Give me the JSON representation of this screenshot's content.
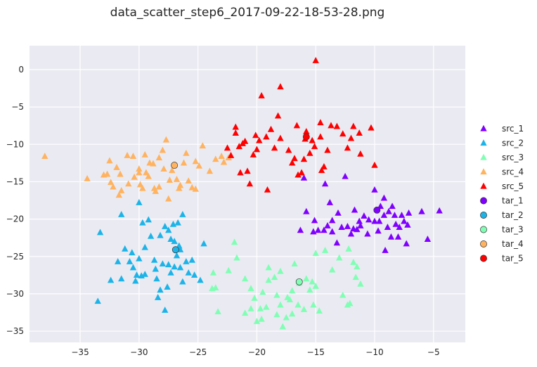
{
  "chart_data": {
    "type": "scatter",
    "title": "data_scatter_step6_2017-09-22-18-53-28.png",
    "xlabel": "",
    "ylabel": "",
    "xlim": [
      -39.3,
      -2.3
    ],
    "ylim": [
      -36.5,
      3.2
    ],
    "xticks": [
      -35,
      -30,
      -25,
      -20,
      -15,
      -10,
      -5
    ],
    "yticks": [
      0,
      -5,
      -10,
      -15,
      -20,
      -25,
      -30,
      -35
    ],
    "grid": true,
    "background": "#eaeaf2",
    "legend_position": "right",
    "series": [
      {
        "name": "src_1",
        "marker": "triangle",
        "color": "#8000ff",
        "points": [
          [
            -16,
            -14.5
          ],
          [
            -14.2,
            -15.3
          ],
          [
            -12.5,
            -14.3
          ],
          [
            -13.8,
            -17.8
          ],
          [
            -15.8,
            -19.0
          ],
          [
            -13.1,
            -19.2
          ],
          [
            -11.7,
            -18.8
          ],
          [
            -10.0,
            -16.1
          ],
          [
            -9.5,
            -18.3
          ],
          [
            -9.2,
            -17.2
          ],
          [
            -8.5,
            -18.3
          ],
          [
            -8.8,
            -19.0
          ],
          [
            -7.7,
            -19.5
          ],
          [
            -7.1,
            -19.2
          ],
          [
            -6.0,
            -19.0
          ],
          [
            -4.5,
            -18.9
          ],
          [
            -5.5,
            -22.7
          ],
          [
            -7.3,
            -23.3
          ],
          [
            -8.0,
            -22.4
          ],
          [
            -8.6,
            -22.4
          ],
          [
            -9.1,
            -24.2
          ],
          [
            -9.7,
            -21.6
          ],
          [
            -10.5,
            -20.1
          ],
          [
            -11.3,
            -20.3
          ],
          [
            -11.2,
            -20.9
          ],
          [
            -11.8,
            -21.3
          ],
          [
            -12.3,
            -21.0
          ],
          [
            -12.8,
            -21.1
          ],
          [
            -12.0,
            -22.0
          ],
          [
            -11.5,
            -21.4
          ],
          [
            -13.6,
            -21.7
          ],
          [
            -14.0,
            -20.9
          ],
          [
            -14.3,
            -21.5
          ],
          [
            -14.8,
            -21.5
          ],
          [
            -15.2,
            -21.7
          ],
          [
            -13.6,
            -20.2
          ],
          [
            -15.1,
            -20.2
          ],
          [
            -16.3,
            -21.5
          ],
          [
            -13.2,
            -23.2
          ],
          [
            -10.6,
            -22.0
          ],
          [
            -10.9,
            -19.6
          ],
          [
            -9.2,
            -19.5
          ],
          [
            -8.2,
            -20.7
          ],
          [
            -7.9,
            -21.1
          ],
          [
            -7.2,
            -20.8
          ],
          [
            -7.5,
            -20.3
          ],
          [
            -8.9,
            -21.1
          ],
          [
            -9.6,
            -20.3
          ],
          [
            -10.0,
            -20.3
          ],
          [
            -8.3,
            -19.5
          ]
        ]
      },
      {
        "name": "src_2",
        "marker": "triangle",
        "color": "#1cb4e8",
        "points": [
          [
            -33.5,
            -31.0
          ],
          [
            -32.4,
            -28.2
          ],
          [
            -31.5,
            -28.0
          ],
          [
            -31.2,
            -24.0
          ],
          [
            -31.5,
            -19.4
          ],
          [
            -33.3,
            -21.8
          ],
          [
            -30.8,
            -25.7
          ],
          [
            -30.5,
            -26.5
          ],
          [
            -30.2,
            -27.5
          ],
          [
            -29.8,
            -27.6
          ],
          [
            -30.6,
            -24.5
          ],
          [
            -30.0,
            -25.3
          ],
          [
            -29.5,
            -23.8
          ],
          [
            -29.0,
            -22.3
          ],
          [
            -29.7,
            -20.5
          ],
          [
            -29.2,
            -20.1
          ],
          [
            -30.0,
            -17.8
          ],
          [
            -28.7,
            -25.5
          ],
          [
            -28.6,
            -26.7
          ],
          [
            -28.5,
            -28.0
          ],
          [
            -28.2,
            -29.5
          ],
          [
            -28.4,
            -30.5
          ],
          [
            -27.8,
            -32.2
          ],
          [
            -28.0,
            -26.0
          ],
          [
            -27.5,
            -26.1
          ],
          [
            -27.0,
            -26.4
          ],
          [
            -27.3,
            -27.2
          ],
          [
            -27.6,
            -29.1
          ],
          [
            -26.5,
            -26.5
          ],
          [
            -26.3,
            -28.4
          ],
          [
            -25.8,
            -27.2
          ],
          [
            -25.3,
            -27.5
          ],
          [
            -24.8,
            -28.2
          ],
          [
            -26.0,
            -25.7
          ],
          [
            -25.5,
            -25.5
          ],
          [
            -26.8,
            -24.9
          ],
          [
            -26.6,
            -23.6
          ],
          [
            -27.0,
            -23.0
          ],
          [
            -27.5,
            -21.5
          ],
          [
            -26.7,
            -20.5
          ],
          [
            -26.3,
            -19.4
          ],
          [
            -27.8,
            -21.0
          ],
          [
            -28.2,
            -22.2
          ],
          [
            -27.3,
            -22.7
          ],
          [
            -27.1,
            -20.7
          ],
          [
            -29.5,
            -27.4
          ],
          [
            -30.3,
            -28.3
          ],
          [
            -31.8,
            -25.7
          ],
          [
            -24.5,
            -23.3
          ],
          [
            -26.5,
            -24.1
          ]
        ]
      },
      {
        "name": "src_3",
        "marker": "triangle",
        "color": "#80ffb4",
        "points": [
          [
            -23.8,
            -29.3
          ],
          [
            -23.5,
            -29.2
          ],
          [
            -23.3,
            -32.4
          ],
          [
            -23.7,
            -27.2
          ],
          [
            -22.4,
            -26.9
          ],
          [
            -21.9,
            -23.1
          ],
          [
            -21.7,
            -25.2
          ],
          [
            -21.0,
            -28.0
          ],
          [
            -20.5,
            -29.3
          ],
          [
            -20.2,
            -30.6
          ],
          [
            -20.5,
            -32.0
          ],
          [
            -21.0,
            -32.6
          ],
          [
            -20.0,
            -33.7
          ],
          [
            -19.7,
            -32.0
          ],
          [
            -19.2,
            -31.8
          ],
          [
            -19.5,
            -29.8
          ],
          [
            -19.0,
            -28.2
          ],
          [
            -18.5,
            -27.8
          ],
          [
            -18.3,
            -30.2
          ],
          [
            -18.0,
            -31.5
          ],
          [
            -18.3,
            -32.8
          ],
          [
            -17.5,
            -33.2
          ],
          [
            -17.8,
            -34.4
          ],
          [
            -17.0,
            -32.7
          ],
          [
            -17.4,
            -30.5
          ],
          [
            -17.0,
            -29.6
          ],
          [
            -16.8,
            -26.0
          ],
          [
            -16.5,
            -31.5
          ],
          [
            -16.0,
            -32.1
          ],
          [
            -15.5,
            -29.5
          ],
          [
            -15.8,
            -28.0
          ],
          [
            -15.3,
            -28.4
          ],
          [
            -15.0,
            -29.0
          ],
          [
            -15.2,
            -31.5
          ],
          [
            -14.7,
            -32.3
          ],
          [
            -15.0,
            -24.6
          ],
          [
            -14.2,
            -24.2
          ],
          [
            -13.6,
            -26.8
          ],
          [
            -13.0,
            -25.2
          ],
          [
            -12.2,
            -24.0
          ],
          [
            -11.8,
            -25.8
          ],
          [
            -11.5,
            -26.4
          ],
          [
            -11.6,
            -27.8
          ],
          [
            -11.2,
            -28.7
          ],
          [
            -12.1,
            -31.3
          ],
          [
            -12.7,
            -30.2
          ],
          [
            -12.3,
            -31.5
          ],
          [
            -16.4,
            -28.6
          ],
          [
            -17.2,
            -30.8
          ],
          [
            -19.6,
            -33.4
          ],
          [
            -19.0,
            -26.5
          ],
          [
            -18.0,
            -27.0
          ]
        ]
      },
      {
        "name": "src_4",
        "marker": "triangle",
        "color": "#ffb360",
        "points": [
          [
            -38.0,
            -11.6
          ],
          [
            -34.4,
            -14.6
          ],
          [
            -33.0,
            -14.1
          ],
          [
            -32.7,
            -14.0
          ],
          [
            -32.4,
            -15.1
          ],
          [
            -32.2,
            -15.7
          ],
          [
            -32.5,
            -12.2
          ],
          [
            -31.9,
            -13.1
          ],
          [
            -31.6,
            -14.0
          ],
          [
            -31.5,
            -16.2
          ],
          [
            -31.7,
            -16.8
          ],
          [
            -31.0,
            -11.5
          ],
          [
            -30.9,
            -15.3
          ],
          [
            -30.4,
            -14.4
          ],
          [
            -30.0,
            -13.3
          ],
          [
            -30.0,
            -13.8
          ],
          [
            -29.9,
            -15.4
          ],
          [
            -29.7,
            -15.9
          ],
          [
            -29.5,
            -11.4
          ],
          [
            -29.4,
            -13.8
          ],
          [
            -29.2,
            -14.3
          ],
          [
            -28.8,
            -12.6
          ],
          [
            -28.7,
            -15.9
          ],
          [
            -28.6,
            -16.3
          ],
          [
            -28.3,
            -15.7
          ],
          [
            -28.0,
            -10.8
          ],
          [
            -27.9,
            -13.3
          ],
          [
            -27.7,
            -9.4
          ],
          [
            -27.4,
            -14.8
          ],
          [
            -27.2,
            -13.5
          ],
          [
            -26.8,
            -14.7
          ],
          [
            -26.5,
            -15.5
          ],
          [
            -26.2,
            -12.5
          ],
          [
            -26.0,
            -11.2
          ],
          [
            -25.8,
            -14.9
          ],
          [
            -25.5,
            -15.8
          ],
          [
            -25.2,
            -12.3
          ],
          [
            -24.9,
            -12.9
          ],
          [
            -24.6,
            -10.2
          ],
          [
            -24.0,
            -13.6
          ],
          [
            -23.5,
            -12.0
          ],
          [
            -23.0,
            -11.6
          ],
          [
            -22.4,
            -11.8
          ],
          [
            -22.8,
            -12.4
          ],
          [
            -25.2,
            -16.0
          ],
          [
            -26.6,
            -15.9
          ],
          [
            -27.5,
            -17.3
          ],
          [
            -28.3,
            -11.8
          ],
          [
            -29.1,
            -12.5
          ],
          [
            -30.5,
            -11.6
          ]
        ]
      },
      {
        "name": "src_5",
        "marker": "triangle",
        "color": "#ff0000",
        "points": [
          [
            -15.0,
            1.2
          ],
          [
            -18.0,
            -2.3
          ],
          [
            -19.6,
            -3.5
          ],
          [
            -18.2,
            -6.2
          ],
          [
            -16.6,
            -7.5
          ],
          [
            -15.8,
            -8.3
          ],
          [
            -15.3,
            -9.5
          ],
          [
            -15.1,
            -10.3
          ],
          [
            -14.6,
            -7.1
          ],
          [
            -13.7,
            -7.5
          ],
          [
            -13.2,
            -7.6
          ],
          [
            -12.7,
            -8.6
          ],
          [
            -12.3,
            -10.5
          ],
          [
            -12.0,
            -9.2
          ],
          [
            -11.8,
            -7.6
          ],
          [
            -11.3,
            -8.5
          ],
          [
            -11.2,
            -11.3
          ],
          [
            -10.3,
            -7.8
          ],
          [
            -10.0,
            -12.8
          ],
          [
            -14.3,
            -13.0
          ],
          [
            -14.5,
            -13.5
          ],
          [
            -14.0,
            -10.8
          ],
          [
            -15.5,
            -11.2
          ],
          [
            -16.0,
            -12.0
          ],
          [
            -16.2,
            -13.8
          ],
          [
            -16.5,
            -14.1
          ],
          [
            -16.8,
            -11.9
          ],
          [
            -17.0,
            -12.5
          ],
          [
            -17.3,
            -10.8
          ],
          [
            -18.0,
            -9.2
          ],
          [
            -18.5,
            -10.5
          ],
          [
            -18.8,
            -8.0
          ],
          [
            -19.2,
            -9.0
          ],
          [
            -19.8,
            -9.5
          ],
          [
            -20.0,
            -10.7
          ],
          [
            -20.3,
            -11.4
          ],
          [
            -20.8,
            -13.6
          ],
          [
            -21.0,
            -9.6
          ],
          [
            -21.2,
            -9.9
          ],
          [
            -21.5,
            -10.3
          ],
          [
            -21.8,
            -8.5
          ],
          [
            -21.8,
            -7.7
          ],
          [
            -22.2,
            -11.5
          ],
          [
            -22.5,
            -10.5
          ],
          [
            -20.1,
            -8.8
          ],
          [
            -19.1,
            -16.1
          ],
          [
            -21.4,
            -13.8
          ],
          [
            -20.6,
            -15.3
          ],
          [
            -14.6,
            -9.0
          ],
          [
            -15.9,
            -9.3
          ]
        ]
      }
    ],
    "targets": [
      {
        "name": "tar_1",
        "marker": "circle",
        "color": "#8000ff",
        "x": -9.8,
        "y": -18.8
      },
      {
        "name": "tar_2",
        "marker": "circle",
        "color": "#1cb4e8",
        "x": -26.9,
        "y": -24.1
      },
      {
        "name": "tar_3",
        "marker": "circle",
        "color": "#80ffb4",
        "x": -16.4,
        "y": -28.4
      },
      {
        "name": "tar_4",
        "marker": "circle",
        "color": "#ffb360",
        "x": -27.0,
        "y": -12.8
      },
      {
        "name": "tar_5",
        "marker": "circle",
        "color": "#ff0000",
        "x": -15.8,
        "y": -9.0
      }
    ]
  }
}
